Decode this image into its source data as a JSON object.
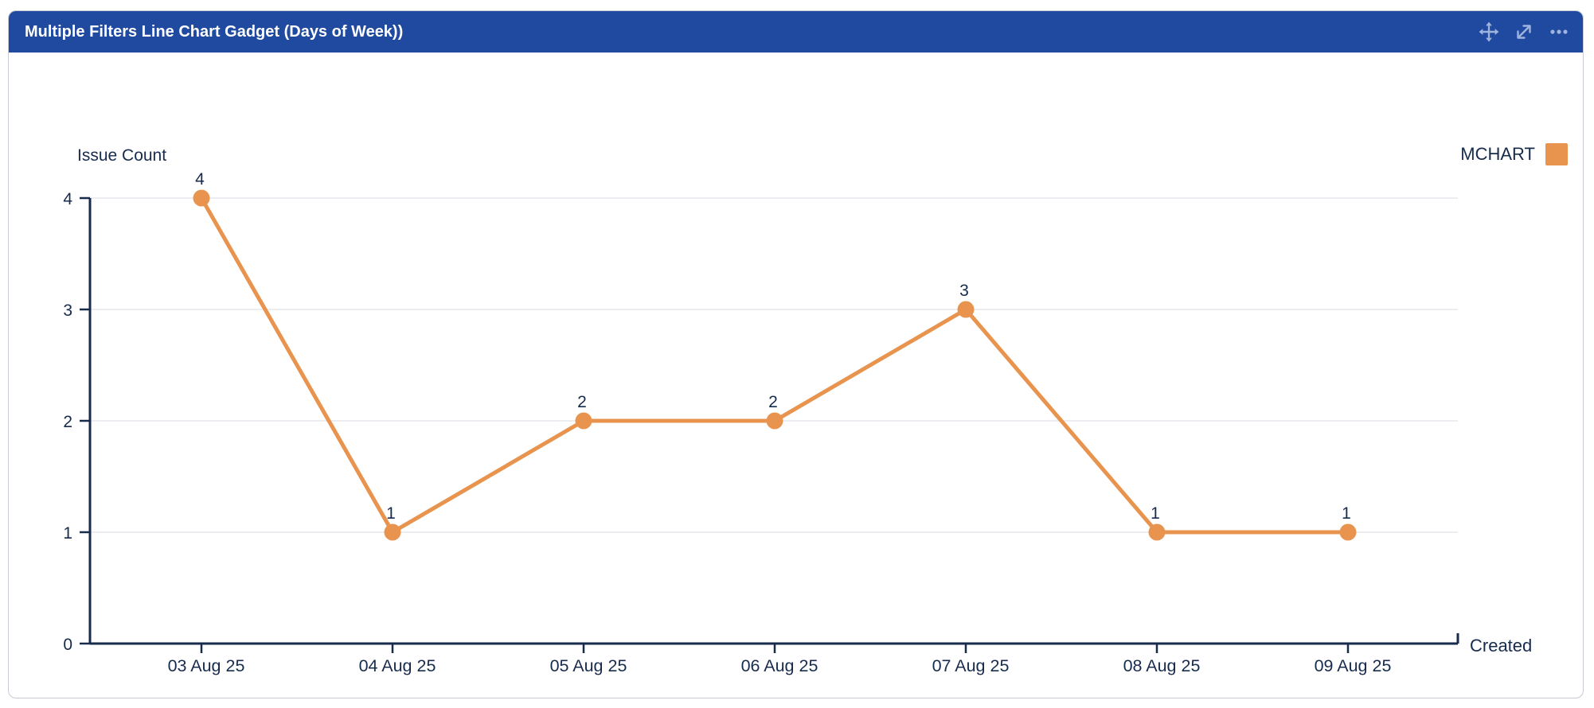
{
  "window": {
    "title": "Multiple Filters Line Chart Gadget (Days of Week))",
    "toolbar": {
      "icons": [
        {
          "name": "move-icon",
          "action": "move gadget"
        },
        {
          "name": "expand-icon",
          "action": "expand gadget"
        },
        {
          "name": "more-options-icon",
          "action": "more options"
        }
      ]
    }
  },
  "colors": {
    "header_bg": "#1F4A9F",
    "series": "#E8944E",
    "axis_line": "#172B4D",
    "axis_text": "#172B4D",
    "grid": "#ECEDF1",
    "icon": "#9FB3DE",
    "card_border": "#C6CBD6",
    "title_text": "#FFFFFF"
  },
  "chart_data": {
    "type": "line",
    "x": [
      "03 Aug 25",
      "04 Aug 25",
      "05 Aug 25",
      "06 Aug 25",
      "07 Aug 25",
      "08 Aug 25",
      "09 Aug 25"
    ],
    "series": [
      {
        "name": "MCHART",
        "color": "#E8944E",
        "values": [
          4,
          1,
          2,
          2,
          3,
          1,
          1
        ]
      }
    ],
    "xlabel": "Created",
    "ylabel": "Issue Count",
    "ylim": [
      0,
      4
    ],
    "yticks": [
      0,
      1,
      2,
      3,
      4
    ],
    "grid": "horizontal-only",
    "legend_position": "top-right",
    "point_labels": true
  }
}
